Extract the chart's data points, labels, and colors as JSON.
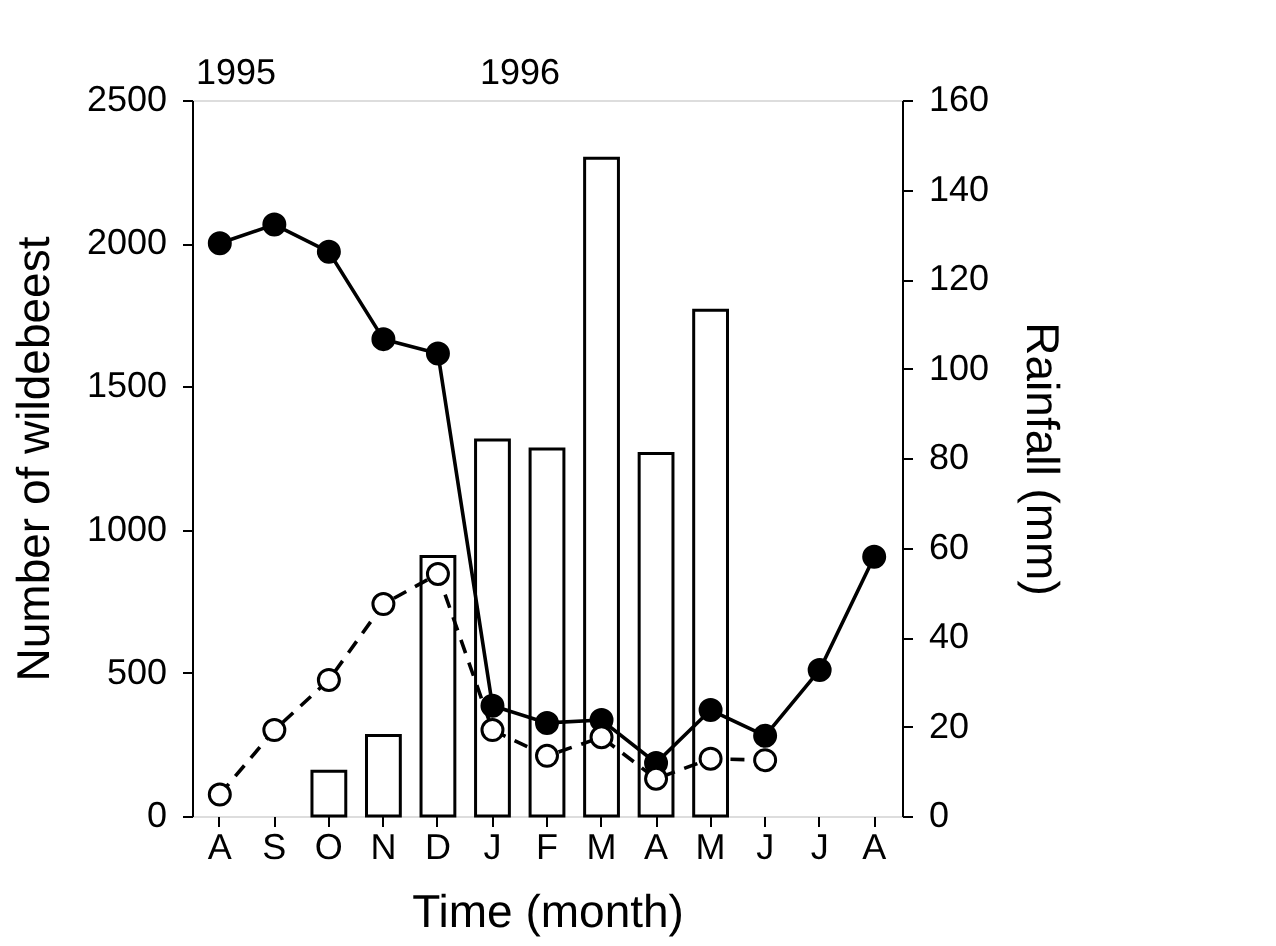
{
  "chart_data": {
    "type": "line",
    "xlabel": "Time (month)",
    "ylabel": "Number of wildebeest",
    "y2label": "Rainfall (mm)",
    "categories": [
      "A",
      "S",
      "O",
      "N",
      "D",
      "J",
      "F",
      "M",
      "A",
      "M",
      "J",
      "J",
      "A"
    ],
    "series": [
      {
        "type": "bar",
        "axis": "y2",
        "color": "#ffffff",
        "values": [
          null,
          null,
          10,
          18,
          58,
          84,
          82,
          147,
          81,
          113,
          null,
          null,
          null
        ]
      },
      {
        "color": "#000000",
        "marker": "circle",
        "line_style": "solid",
        "values": [
          2000,
          2065,
          1970,
          1665,
          1615,
          385,
          325,
          335,
          185,
          370,
          280,
          510,
          905
        ]
      },
      {
        "color": "#ffffff",
        "marker": "circle",
        "line_style": "dashed",
        "values": [
          75,
          300,
          475,
          740,
          845,
          300,
          210,
          275,
          130,
          200,
          195,
          null,
          null
        ]
      }
    ],
    "ylim": [
      0,
      2500
    ],
    "yticks": [
      0,
      500,
      1000,
      1500,
      2000,
      2500
    ],
    "y2lim": [
      0,
      160
    ],
    "y2ticks": [
      0,
      20,
      40,
      60,
      80,
      100,
      120,
      140,
      160
    ],
    "annotations": [
      "1995",
      "1996"
    ],
    "grid": false
  }
}
